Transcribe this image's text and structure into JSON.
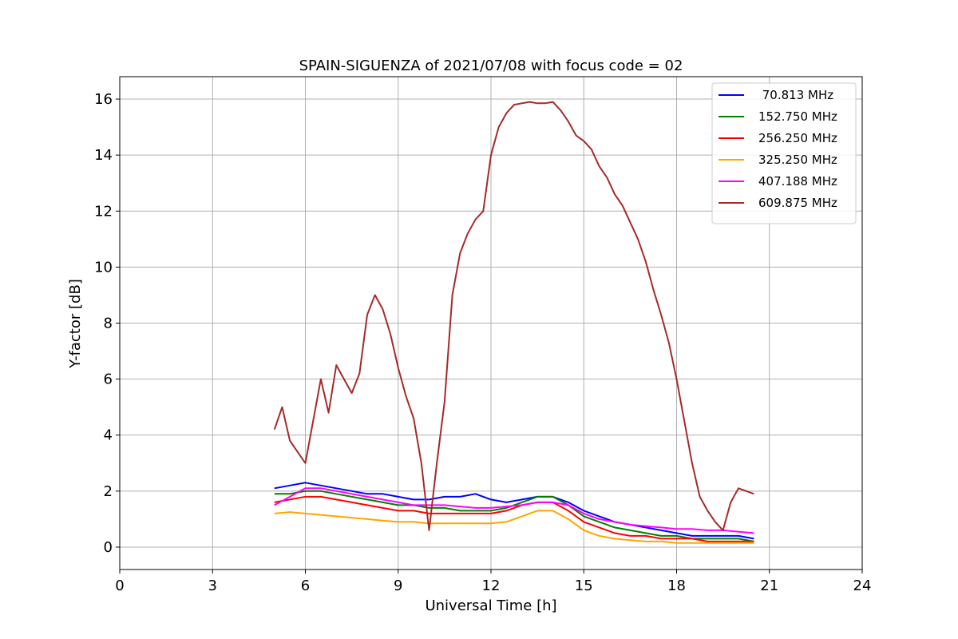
{
  "chart_data": {
    "type": "line",
    "title": "SPAIN-SIGUENZA of 2021/07/08 with focus code = 02",
    "xlabel": "Universal Time [h]",
    "ylabel": "Y-factor [dB]",
    "xlim": [
      0,
      24
    ],
    "ylim": [
      -0.8,
      16.8
    ],
    "xticks": [
      0,
      3,
      6,
      9,
      12,
      15,
      18,
      21,
      24
    ],
    "yticks": [
      0,
      2,
      4,
      6,
      8,
      10,
      12,
      14,
      16
    ],
    "grid": true,
    "legend_position": "top-right",
    "series": [
      {
        "name": " 70.813 MHz",
        "color": "#0000ff",
        "x": [
          5.0,
          5.5,
          6.0,
          6.5,
          7.0,
          7.5,
          8.0,
          8.5,
          9.0,
          9.5,
          10.0,
          10.5,
          11.0,
          11.5,
          12.0,
          12.5,
          13.0,
          13.5,
          14.0,
          14.5,
          15.0,
          15.5,
          16.0,
          16.5,
          17.0,
          17.5,
          18.0,
          18.5,
          19.0,
          19.5,
          20.0,
          20.5
        ],
        "y": [
          2.1,
          2.2,
          2.3,
          2.2,
          2.1,
          2.0,
          1.9,
          1.9,
          1.8,
          1.7,
          1.7,
          1.8,
          1.8,
          1.9,
          1.7,
          1.6,
          1.7,
          1.8,
          1.8,
          1.6,
          1.3,
          1.1,
          0.9,
          0.8,
          0.7,
          0.6,
          0.5,
          0.4,
          0.4,
          0.4,
          0.4,
          0.3
        ]
      },
      {
        "name": "152.750 MHz",
        "color": "#008000",
        "x": [
          5.0,
          5.5,
          6.0,
          6.5,
          7.0,
          7.5,
          8.0,
          8.5,
          9.0,
          9.5,
          10.0,
          10.5,
          11.0,
          11.5,
          12.0,
          12.5,
          13.0,
          13.5,
          14.0,
          14.5,
          15.0,
          15.5,
          16.0,
          16.5,
          17.0,
          17.5,
          18.0,
          18.5,
          19.0,
          19.5,
          20.0,
          20.5
        ],
        "y": [
          1.9,
          1.9,
          2.0,
          2.0,
          1.9,
          1.8,
          1.7,
          1.6,
          1.5,
          1.5,
          1.4,
          1.4,
          1.3,
          1.3,
          1.3,
          1.4,
          1.6,
          1.8,
          1.8,
          1.5,
          1.1,
          0.9,
          0.7,
          0.6,
          0.5,
          0.4,
          0.4,
          0.3,
          0.3,
          0.3,
          0.3,
          0.2
        ]
      },
      {
        "name": "256.250 MHz",
        "color": "#ff0000",
        "x": [
          5.0,
          5.5,
          6.0,
          6.5,
          7.0,
          7.5,
          8.0,
          8.5,
          9.0,
          9.5,
          10.0,
          10.5,
          11.0,
          11.5,
          12.0,
          12.5,
          13.0,
          13.5,
          14.0,
          14.5,
          15.0,
          15.5,
          16.0,
          16.5,
          17.0,
          17.5,
          18.0,
          18.5,
          19.0,
          19.5,
          20.0,
          20.5
        ],
        "y": [
          1.6,
          1.7,
          1.8,
          1.8,
          1.7,
          1.6,
          1.5,
          1.4,
          1.3,
          1.3,
          1.2,
          1.2,
          1.2,
          1.2,
          1.2,
          1.3,
          1.5,
          1.6,
          1.6,
          1.3,
          0.9,
          0.7,
          0.5,
          0.4,
          0.4,
          0.3,
          0.3,
          0.3,
          0.2,
          0.2,
          0.2,
          0.2
        ]
      },
      {
        "name": "325.250 MHz",
        "color": "#ffa500",
        "x": [
          5.0,
          5.5,
          6.0,
          6.5,
          7.0,
          7.5,
          8.0,
          8.5,
          9.0,
          9.5,
          10.0,
          10.5,
          11.0,
          11.5,
          12.0,
          12.5,
          13.0,
          13.5,
          14.0,
          14.5,
          15.0,
          15.5,
          16.0,
          16.5,
          17.0,
          17.5,
          18.0,
          18.5,
          19.0,
          19.5,
          20.0,
          20.5
        ],
        "y": [
          1.2,
          1.25,
          1.2,
          1.15,
          1.1,
          1.05,
          1.0,
          0.95,
          0.9,
          0.9,
          0.85,
          0.85,
          0.85,
          0.85,
          0.85,
          0.9,
          1.1,
          1.3,
          1.3,
          1.0,
          0.6,
          0.4,
          0.3,
          0.25,
          0.2,
          0.2,
          0.15,
          0.15,
          0.15,
          0.15,
          0.15,
          0.15
        ]
      },
      {
        "name": "407.188 MHz",
        "color": "#ff00ff",
        "x": [
          5.0,
          5.5,
          6.0,
          6.5,
          7.0,
          7.5,
          8.0,
          8.5,
          9.0,
          9.5,
          10.0,
          10.5,
          11.0,
          11.5,
          12.0,
          12.5,
          13.0,
          13.5,
          14.0,
          14.5,
          15.0,
          15.5,
          16.0,
          16.5,
          17.0,
          17.5,
          18.0,
          18.5,
          19.0,
          19.5,
          20.0,
          20.5
        ],
        "y": [
          1.5,
          1.8,
          2.1,
          2.1,
          2.0,
          1.9,
          1.8,
          1.7,
          1.6,
          1.5,
          1.5,
          1.5,
          1.45,
          1.4,
          1.4,
          1.45,
          1.5,
          1.6,
          1.6,
          1.5,
          1.2,
          1.0,
          0.9,
          0.8,
          0.75,
          0.7,
          0.65,
          0.65,
          0.6,
          0.6,
          0.55,
          0.5
        ]
      },
      {
        "name": "609.875 MHz",
        "color": "#a52a2a",
        "x": [
          5.0,
          5.25,
          5.5,
          5.75,
          6.0,
          6.25,
          6.5,
          6.75,
          7.0,
          7.25,
          7.5,
          7.75,
          8.0,
          8.25,
          8.5,
          8.75,
          9.0,
          9.25,
          9.5,
          9.75,
          10.0,
          10.25,
          10.5,
          10.75,
          11.0,
          11.25,
          11.5,
          11.75,
          12.0,
          12.25,
          12.5,
          12.75,
          13.0,
          13.25,
          13.5,
          13.75,
          14.0,
          14.25,
          14.5,
          14.75,
          15.0,
          15.25,
          15.5,
          15.75,
          16.0,
          16.25,
          16.5,
          16.75,
          17.0,
          17.25,
          17.5,
          17.75,
          18.0,
          18.25,
          18.5,
          18.75,
          19.0,
          19.25,
          19.5,
          19.75,
          20.0,
          20.25,
          20.5
        ],
        "y": [
          4.2,
          5.0,
          3.8,
          3.4,
          3.0,
          4.5,
          6.0,
          4.8,
          6.5,
          6.0,
          5.5,
          6.2,
          8.3,
          9.0,
          8.5,
          7.6,
          6.4,
          5.4,
          4.6,
          3.0,
          0.6,
          3.0,
          5.2,
          9.0,
          10.5,
          11.2,
          11.7,
          12.0,
          14.0,
          15.0,
          15.5,
          15.8,
          15.85,
          15.9,
          15.85,
          15.85,
          15.9,
          15.6,
          15.2,
          14.7,
          14.5,
          14.2,
          13.6,
          13.2,
          12.6,
          12.2,
          11.6,
          11.0,
          10.2,
          9.2,
          8.3,
          7.3,
          6.0,
          4.5,
          3.0,
          1.8,
          1.3,
          0.9,
          0.6,
          1.6,
          2.1,
          2.0,
          1.9
        ]
      }
    ]
  }
}
